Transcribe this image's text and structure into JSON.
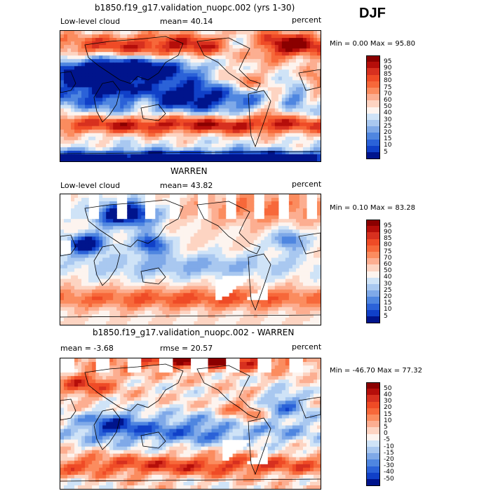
{
  "season": "DJF",
  "panels": [
    {
      "title": "b1850.f19_g17.validation_nuopc.002 (yrs 1-30)",
      "left_label": "Low-level cloud",
      "mid_label": "mean=  40.14",
      "right_label": "percent",
      "minmax": "Min =   0.00 Max =  95.80",
      "colorbar_labels": [
        "95",
        "90",
        "85",
        "80",
        "75",
        "70",
        "60",
        "50",
        "40",
        "30",
        "25",
        "20",
        "15",
        "10",
        "5"
      ]
    },
    {
      "title": "WARREN",
      "left_label": "Low-level cloud",
      "mid_label": "mean=  43.82",
      "right_label": "percent",
      "minmax": "Min =   0.10 Max =  83.28",
      "colorbar_labels": [
        "95",
        "90",
        "85",
        "80",
        "75",
        "70",
        "60",
        "50",
        "40",
        "30",
        "25",
        "20",
        "15",
        "10",
        "5"
      ]
    },
    {
      "title": "b1850.f19_g17.validation_nuopc.002 - WARREN",
      "left_label": "mean =  -3.68",
      "mid_label": "rmse =  20.57",
      "right_label": "percent",
      "minmax": "Min = -46.70 Max =  77.32",
      "colorbar_labels": [
        "50",
        "40",
        "30",
        "20",
        "15",
        "10",
        "5",
        "0",
        "-5",
        "-10",
        "-15",
        "-20",
        "-30",
        "-40",
        "-50"
      ]
    }
  ],
  "colors": {
    "scale16": [
      "#8b0000",
      "#b50e0a",
      "#d7301f",
      "#ef4b26",
      "#f7683a",
      "#fb8c5f",
      "#fcae91",
      "#fdd4c2",
      "#fdf4ef",
      "#cfe3f7",
      "#a9c8f0",
      "#7fa9e8",
      "#4f86e0",
      "#2b62d8",
      "#1040c8",
      "#00148c"
    ]
  }
}
